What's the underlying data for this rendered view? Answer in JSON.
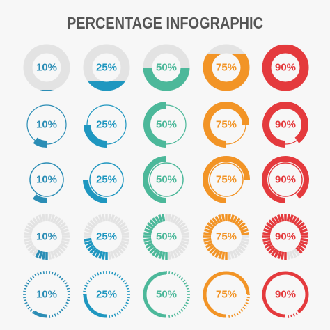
{
  "chart_data": {
    "type": "gauge-grid",
    "title": "PERCENTAGE INFOGRAPHIC",
    "values": [
      10,
      25,
      50,
      75,
      90
    ],
    "value_labels": [
      "10%",
      "25%",
      "50%",
      "75%",
      "90%"
    ],
    "colors": [
      "#2b8db5",
      "#1f97c0",
      "#4cb89a",
      "#f29426",
      "#e43a3d"
    ],
    "styles": [
      "level",
      "thick-arc",
      "ring-arc",
      "ticks",
      "dashes"
    ]
  }
}
